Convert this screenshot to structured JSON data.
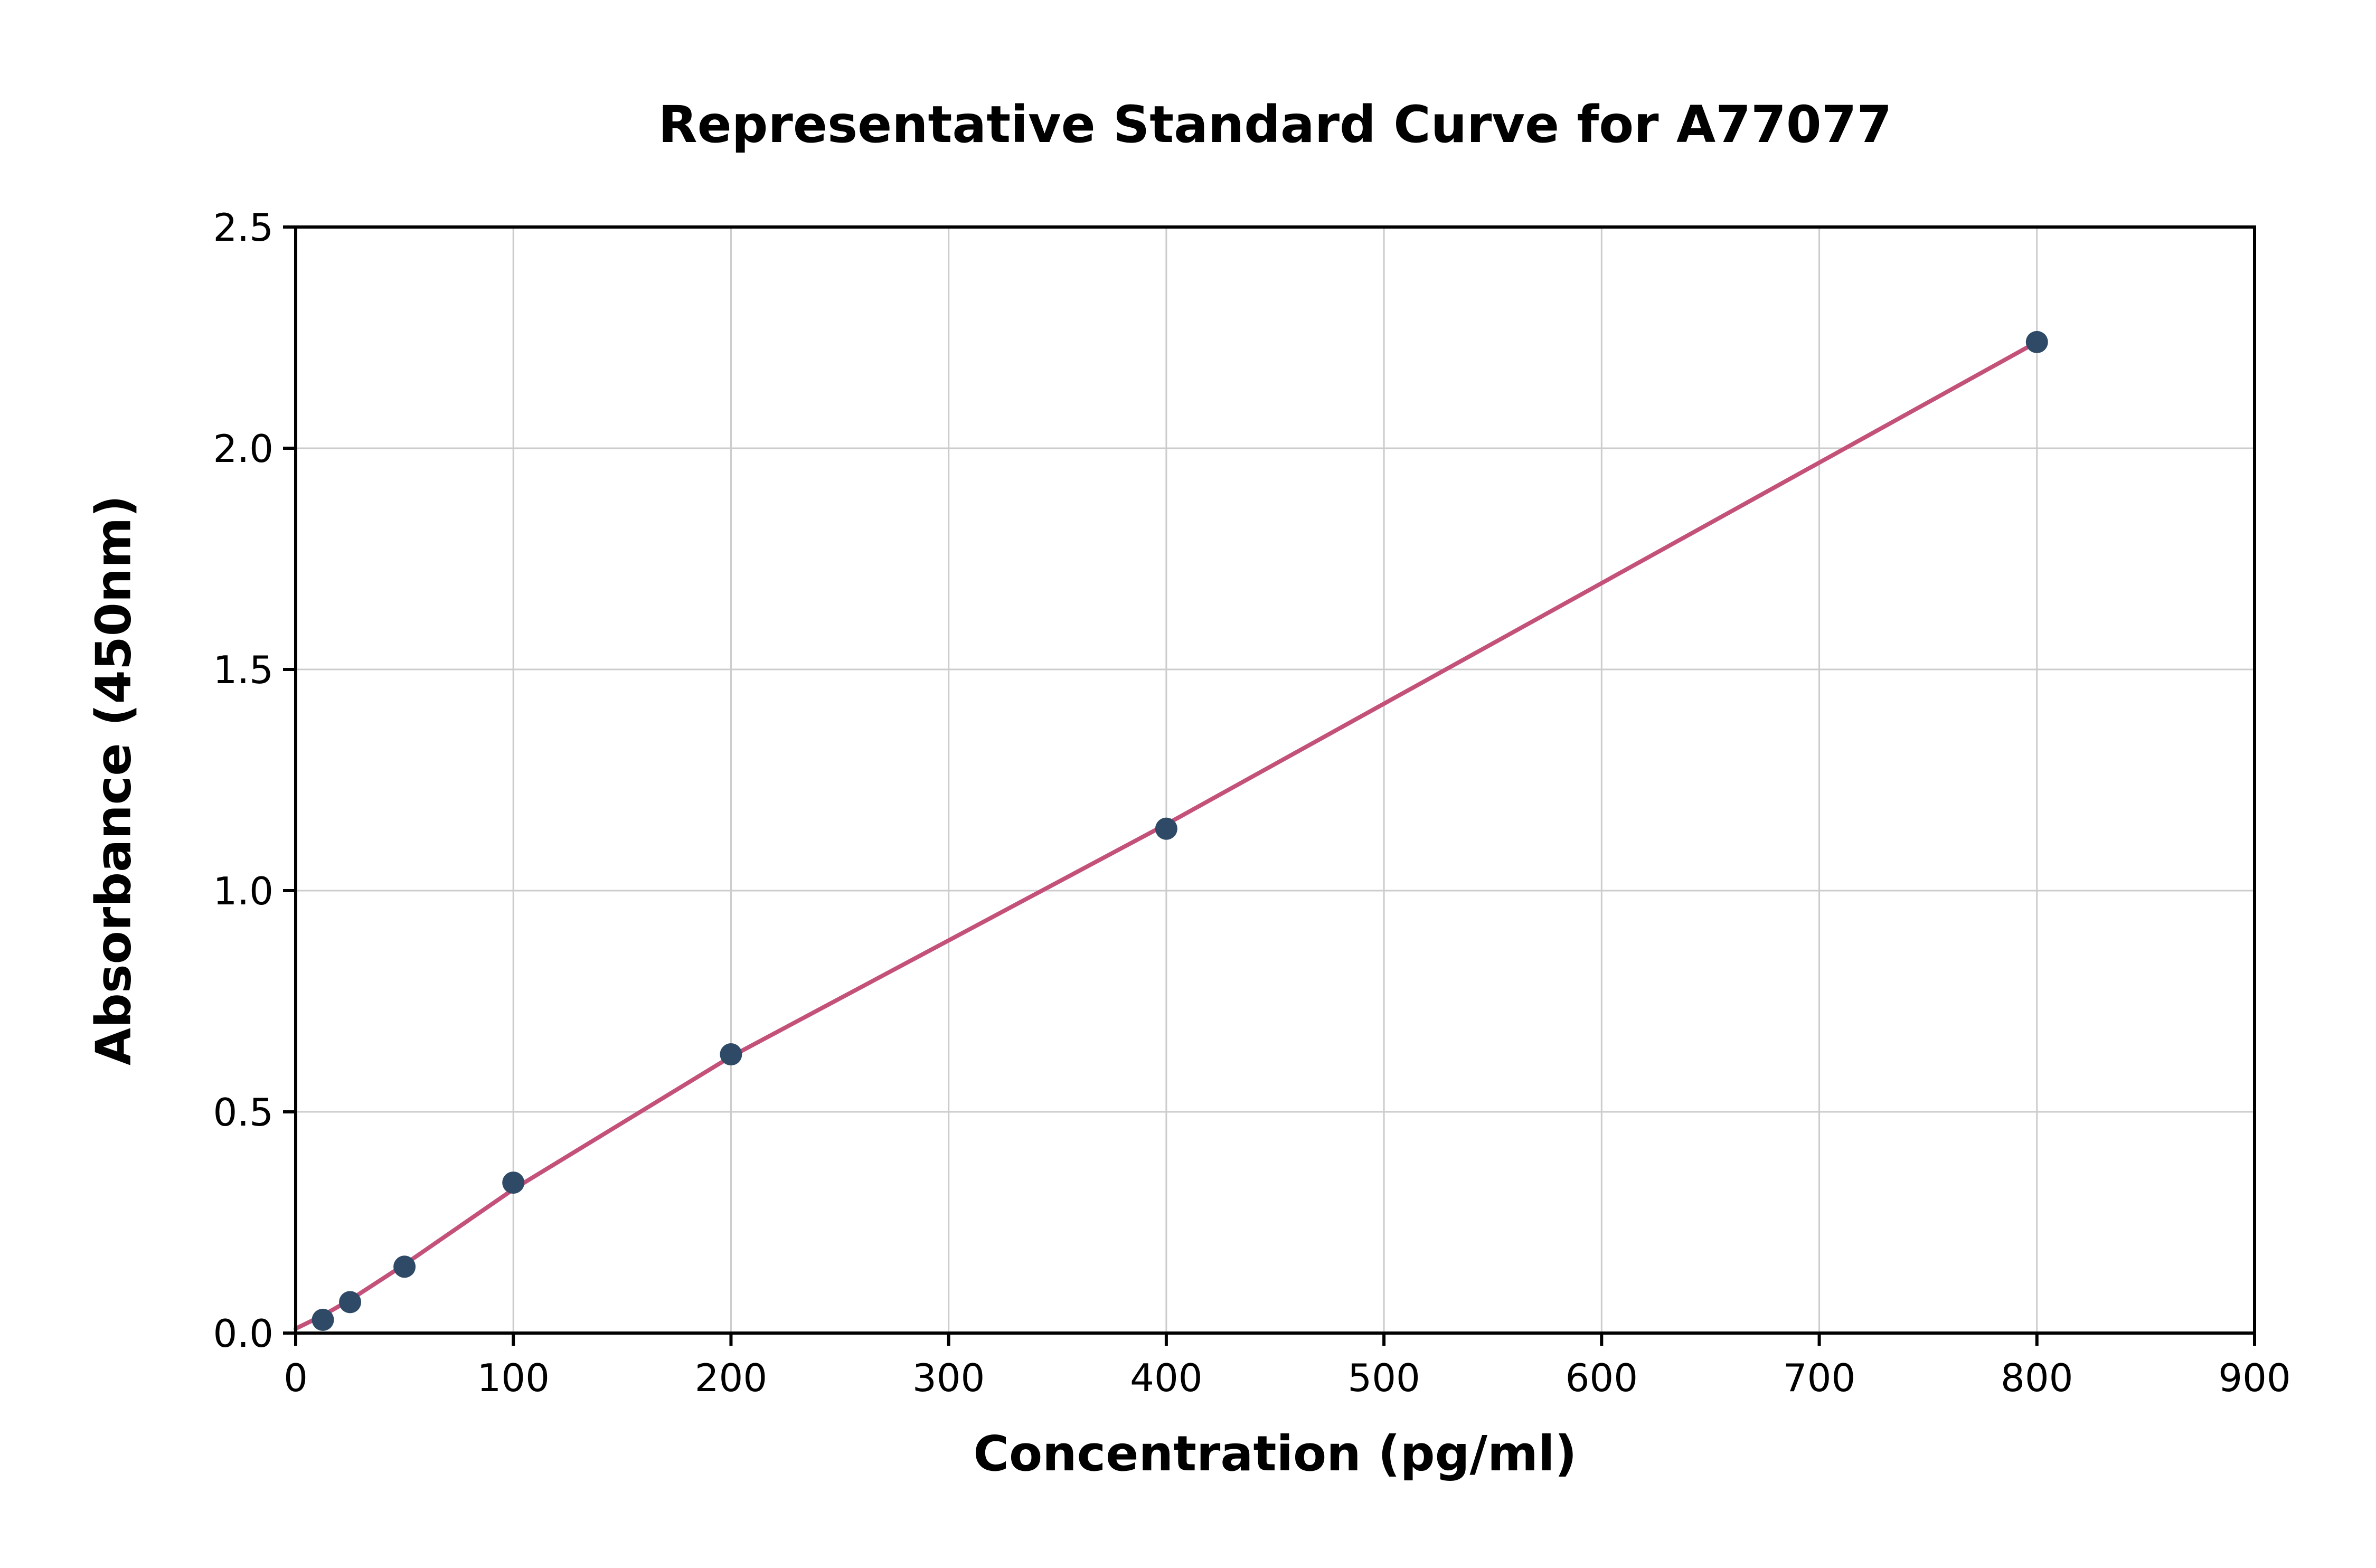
{
  "page": {
    "background": "#ffffff"
  },
  "chart_data": {
    "type": "scatter",
    "title": "Representative Standard Curve for A77077",
    "xlabel": "Concentration (pg/ml)",
    "ylabel": "Absorbance (450nm)",
    "xlim": [
      0,
      900
    ],
    "ylim": [
      0.0,
      2.5
    ],
    "x_ticks": [
      0,
      100,
      200,
      300,
      400,
      500,
      600,
      700,
      800,
      900
    ],
    "x_tick_labels": [
      "0",
      "100",
      "200",
      "300",
      "400",
      "500",
      "600",
      "700",
      "800",
      "900"
    ],
    "y_ticks": [
      0.0,
      0.5,
      1.0,
      1.5,
      2.0,
      2.5
    ],
    "y_tick_labels": [
      "0.0",
      "0.5",
      "1.0",
      "1.5",
      "2.0",
      "2.5"
    ],
    "grid": true,
    "legend_position": "none",
    "series": [
      {
        "name": "fit-line",
        "type": "line",
        "color": "#c4517a",
        "points": [
          [
            0,
            0.01
          ],
          [
            12.5,
            0.04
          ],
          [
            25,
            0.075
          ],
          [
            50,
            0.155
          ],
          [
            100,
            0.325
          ],
          [
            200,
            0.625
          ],
          [
            400,
            1.15
          ],
          [
            800,
            2.24
          ]
        ]
      },
      {
        "name": "standard-points",
        "type": "scatter",
        "color": "#2e4a66",
        "points": [
          [
            12.5,
            0.03
          ],
          [
            25,
            0.07
          ],
          [
            50,
            0.15
          ],
          [
            100,
            0.34
          ],
          [
            200,
            0.63
          ],
          [
            400,
            1.14
          ],
          [
            800,
            2.24
          ]
        ]
      }
    ]
  },
  "colors": {
    "grid": "#cccccc",
    "axis": "#000000",
    "text": "#000000",
    "background": "#ffffff"
  }
}
